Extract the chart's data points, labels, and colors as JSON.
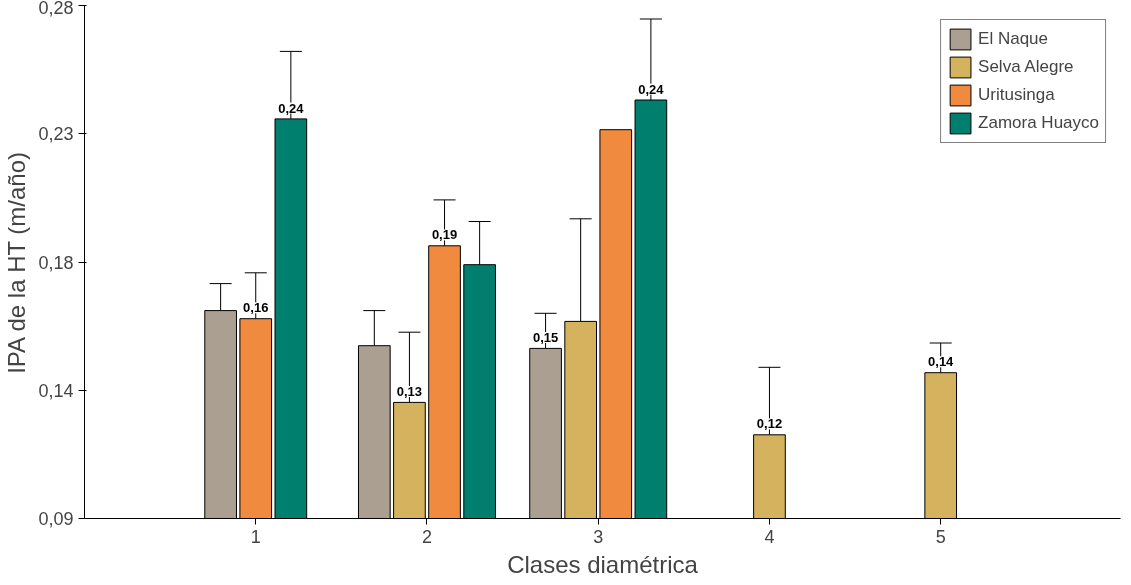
{
  "chart_data": {
    "type": "bar",
    "xlabel": "Clases diamétrica",
    "ylabel": "IPA de la HT (m/año)",
    "categories": [
      "1",
      "2",
      "3",
      "4",
      "5"
    ],
    "ylim": [
      0.09,
      0.28
    ],
    "yticks": [
      {
        "value": 0.09,
        "label": "0,09"
      },
      {
        "value": 0.1375,
        "label": "0,14"
      },
      {
        "value": 0.185,
        "label": "0,18"
      },
      {
        "value": 0.2325,
        "label": "0,23"
      },
      {
        "value": 0.28,
        "label": "0,28"
      }
    ],
    "legend": "top right",
    "grid": false,
    "series": [
      {
        "name": "El Naque",
        "color": "#ab9f91",
        "values": [
          0.167,
          0.154,
          0.153,
          null,
          null
        ],
        "errors": [
          [
            0.167,
            0.177
          ],
          [
            0.154,
            0.167
          ],
          [
            0.153,
            0.166
          ],
          null,
          null
        ],
        "value_labels": [
          null,
          null,
          "0,15",
          null,
          null
        ]
      },
      {
        "name": "Selva Alegre",
        "color": "#d4b25e",
        "values": [
          null,
          0.133,
          0.163,
          0.121,
          0.144
        ],
        "errors": [
          null,
          [
            0.133,
            0.159
          ],
          [
            0.163,
            0.201
          ],
          [
            0.121,
            0.146
          ],
          [
            0.144,
            0.155
          ]
        ],
        "value_labels": [
          null,
          "0,13",
          null,
          "0,12",
          "0,14"
        ]
      },
      {
        "name": "Uritusinga",
        "color": "#f08a3e",
        "values": [
          0.164,
          0.191,
          0.234,
          null,
          null
        ],
        "errors": [
          [
            0.164,
            0.181
          ],
          [
            0.191,
            0.208
          ],
          null,
          null,
          null
        ],
        "value_labels": [
          "0,16",
          "0,19",
          null,
          null,
          null
        ]
      },
      {
        "name": "Zamora Huayco",
        "color": "#007f6e",
        "values": [
          0.238,
          0.184,
          0.245,
          null,
          null
        ],
        "errors": [
          [
            0.238,
            0.263
          ],
          [
            0.184,
            0.2
          ],
          [
            0.245,
            0.275
          ],
          null,
          null
        ],
        "value_labels": [
          "0,24",
          null,
          "0,24",
          null,
          null
        ]
      }
    ]
  }
}
